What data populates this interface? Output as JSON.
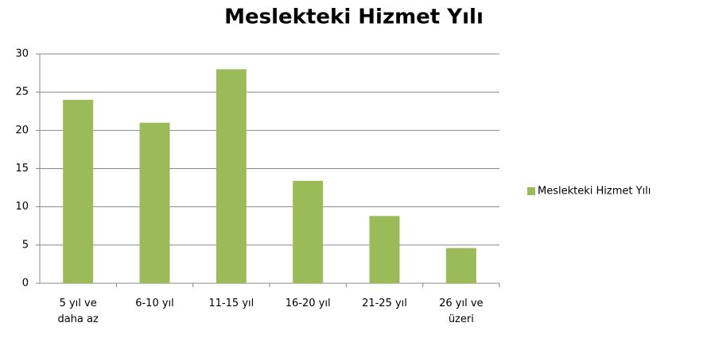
{
  "chart_data": {
    "type": "bar",
    "title": "Meslekteki Hizmet Yılı",
    "categories": [
      "5 yıl ve daha az",
      "6-10 yıl",
      "11-15 yıl",
      "16-20 yıl",
      "21-25 yıl",
      "26 yıl ve üzeri"
    ],
    "series": [
      {
        "name": "Meslekteki Hizmet Yılı",
        "color": "#9bbb59",
        "values": [
          24,
          21,
          28,
          13.4,
          8.8,
          4.6
        ]
      }
    ],
    "ylim": [
      0,
      30
    ],
    "yticks": [
      0,
      5,
      10,
      15,
      20,
      25,
      30
    ],
    "grid": true,
    "legend": "right"
  }
}
